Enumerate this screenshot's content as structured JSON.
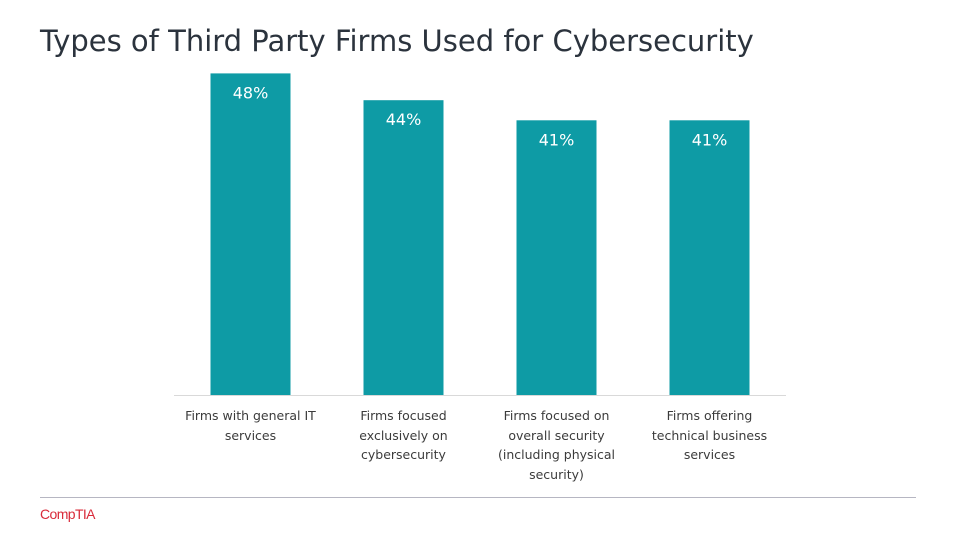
{
  "slide": {
    "title": "Types of Third Party Firms Used for Cybersecurity"
  },
  "chart_data": {
    "type": "bar",
    "categories": [
      "Firms with general IT services",
      "Firms focused exclusively on cybersecurity",
      "Firms focused on overall security (including physical security)",
      "Firms offering technical business services"
    ],
    "values": [
      48,
      44,
      41,
      41
    ],
    "data_labels": [
      "48%",
      "44%",
      "41%",
      "41%"
    ],
    "unit": "%",
    "ylim": [
      0,
      50
    ],
    "grid": false,
    "legend": "none",
    "bar_color": "#0e9ba5",
    "label_color": "#ffffff"
  },
  "footer": {
    "logo_text": "CompTIA",
    "logo_color": "#d92b3a"
  }
}
